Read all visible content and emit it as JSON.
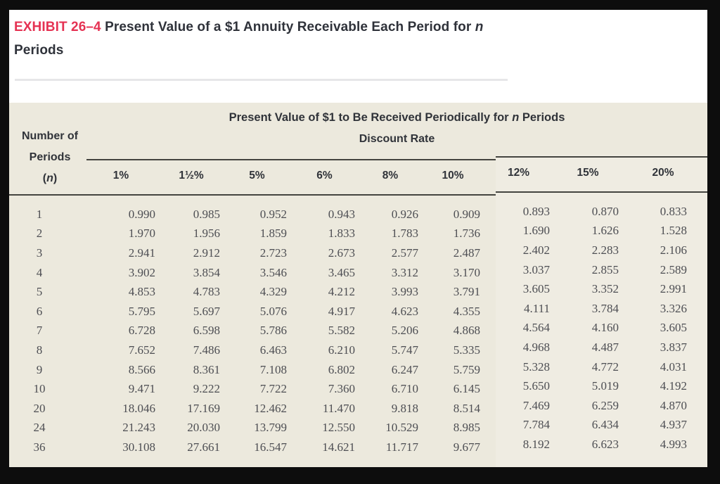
{
  "colors": {
    "accent_red": "#e53253",
    "table_background": "#ece9dd",
    "frame_background": "#0d0d0d",
    "rule_color": "#44443f"
  },
  "title": {
    "exhibit_label": "EXHIBIT 26–4",
    "line1_text": " Present Value of a $1 Annuity Receivable Each Period for ",
    "line1_italic": "n",
    "line2": "Periods"
  },
  "table": {
    "heading": {
      "prefix": "Present Value of $1 to Be Received Periodically for ",
      "italic": "n",
      "suffix": " Periods"
    },
    "corner_label": {
      "line1": "Number of",
      "line2": "Periods",
      "line3_open": "(",
      "line3_italic": "n",
      "line3_close": ")"
    },
    "group_header": "Discount Rate",
    "columns": [
      "1%",
      "1½%",
      "5%",
      "6%",
      "8%",
      "10%",
      "12%",
      "15%",
      "20%"
    ],
    "rows": [
      {
        "n": "1",
        "values": [
          "0.990",
          "0.985",
          "0.952",
          "0.943",
          "0.926",
          "0.909",
          "0.893",
          "0.870",
          "0.833"
        ]
      },
      {
        "n": "2",
        "values": [
          "1.970",
          "1.956",
          "1.859",
          "1.833",
          "1.783",
          "1.736",
          "1.690",
          "1.626",
          "1.528"
        ]
      },
      {
        "n": "3",
        "values": [
          "2.941",
          "2.912",
          "2.723",
          "2.673",
          "2.577",
          "2.487",
          "2.402",
          "2.283",
          "2.106"
        ]
      },
      {
        "n": "4",
        "values": [
          "3.902",
          "3.854",
          "3.546",
          "3.465",
          "3.312",
          "3.170",
          "3.037",
          "2.855",
          "2.589"
        ]
      },
      {
        "n": "5",
        "values": [
          "4.853",
          "4.783",
          "4.329",
          "4.212",
          "3.993",
          "3.791",
          "3.605",
          "3.352",
          "2.991"
        ]
      },
      {
        "n": "6",
        "values": [
          "5.795",
          "5.697",
          "5.076",
          "4.917",
          "4.623",
          "4.355",
          "4.111",
          "3.784",
          "3.326"
        ]
      },
      {
        "n": "7",
        "values": [
          "6.728",
          "6.598",
          "5.786",
          "5.582",
          "5.206",
          "4.868",
          "4.564",
          "4.160",
          "3.605"
        ]
      },
      {
        "n": "8",
        "values": [
          "7.652",
          "7.486",
          "6.463",
          "6.210",
          "5.747",
          "5.335",
          "4.968",
          "4.487",
          "3.837"
        ]
      },
      {
        "n": "9",
        "values": [
          "8.566",
          "8.361",
          "7.108",
          "6.802",
          "6.247",
          "5.759",
          "5.328",
          "4.772",
          "4.031"
        ]
      },
      {
        "n": "10",
        "values": [
          "9.471",
          "9.222",
          "7.722",
          "7.360",
          "6.710",
          "6.145",
          "5.650",
          "5.019",
          "4.192"
        ]
      },
      {
        "n": "20",
        "values": [
          "18.046",
          "17.169",
          "12.462",
          "11.470",
          "9.818",
          "8.514",
          "7.469",
          "6.259",
          "4.870"
        ]
      },
      {
        "n": "24",
        "values": [
          "21.243",
          "20.030",
          "13.799",
          "12.550",
          "10.529",
          "8.985",
          "7.784",
          "6.434",
          "4.937"
        ]
      },
      {
        "n": "36",
        "values": [
          "30.108",
          "27.661",
          "16.547",
          "14.621",
          "11.717",
          "9.677",
          "8.192",
          "6.623",
          "4.993"
        ]
      }
    ]
  }
}
